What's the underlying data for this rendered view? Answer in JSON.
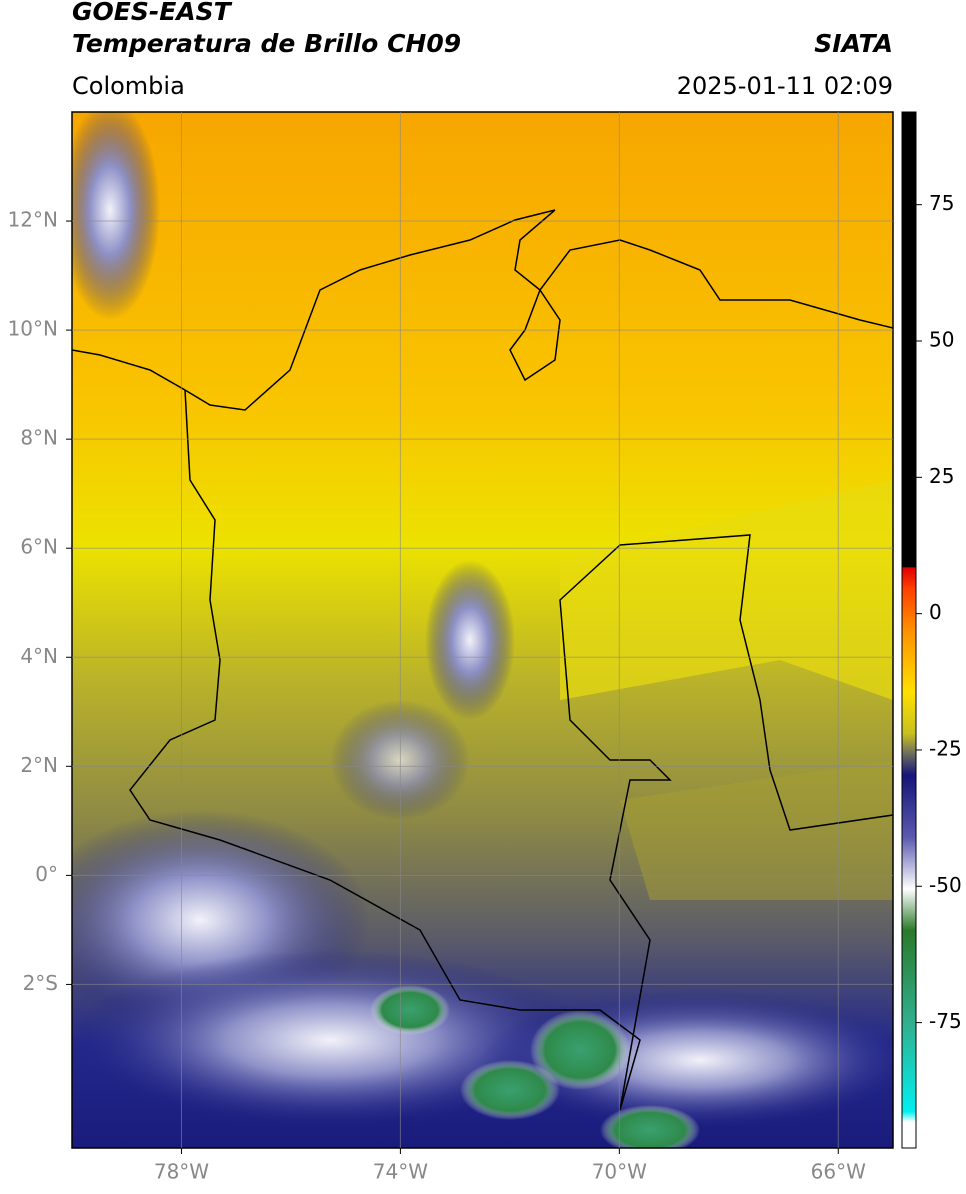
{
  "header": {
    "title_line_1": "GOES-EAST",
    "title_line_2": "Temperatura de Brillo CH09",
    "source": "SIATA",
    "region": "Colombia",
    "datetime": "2025-01-11 02:09"
  },
  "map": {
    "xlim": [
      -80,
      -65
    ],
    "ylim": [
      -5,
      14
    ],
    "grid": true,
    "xticks": [
      {
        "value": -78,
        "label": "78°W"
      },
      {
        "value": -74,
        "label": "74°W"
      },
      {
        "value": -70,
        "label": "70°W"
      },
      {
        "value": -66,
        "label": "66°W"
      }
    ],
    "yticks": [
      {
        "value": 12,
        "label": "12°N"
      },
      {
        "value": 10,
        "label": "10°N"
      },
      {
        "value": 8,
        "label": "8°N"
      },
      {
        "value": 6,
        "label": "6°N"
      },
      {
        "value": 4,
        "label": "4°N"
      },
      {
        "value": 2,
        "label": "2°N"
      },
      {
        "value": 0,
        "label": "0°"
      },
      {
        "value": -2,
        "label": "2°S"
      }
    ]
  },
  "colorbar": {
    "lim": [
      -98,
      92
    ],
    "ticks": [
      75,
      50,
      25,
      0,
      -25,
      -50,
      -75
    ]
  }
}
